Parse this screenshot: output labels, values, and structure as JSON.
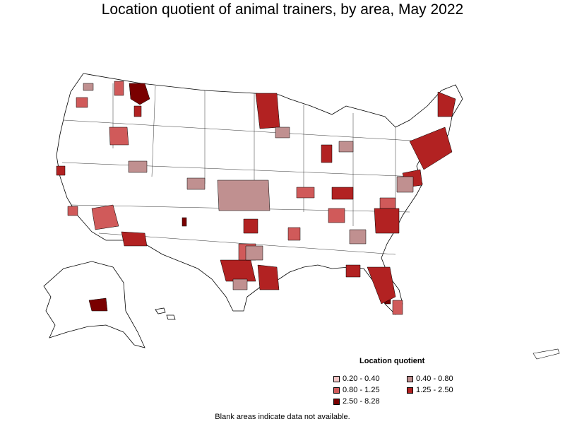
{
  "title": "Location quotient of animal trainers, by area, May 2022",
  "legend": {
    "title": "Location quotient",
    "items": [
      {
        "label": "0.20 - 0.40",
        "color": "#f2c6c6"
      },
      {
        "label": "0.40 - 0.80",
        "color": "#c09090"
      },
      {
        "label": "0.80 - 1.25",
        "color": "#d05a5a"
      },
      {
        "label": "1.25 - 2.50",
        "color": "#b22222"
      },
      {
        "label": "2.50 - 8.28",
        "color": "#7a0000"
      }
    ]
  },
  "footnote": "Blank areas indicate data not available.",
  "colors": {
    "outline": "#000000",
    "blank": "#ffffff"
  }
}
